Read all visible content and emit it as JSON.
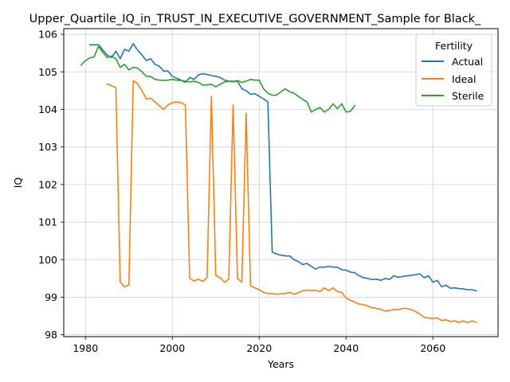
{
  "chart_data": {
    "type": "line",
    "title": "Upper_Quartile_IQ_in_TRUST_IN_EXECUTIVE_GOVERNMENT_Sample for Black_",
    "xlabel": "Years",
    "ylabel": "IQ",
    "xlim": [
      1975,
      2075
    ],
    "ylim": [
      97.95,
      106.15
    ],
    "x_ticks": [
      1980,
      2000,
      2020,
      2040,
      2060
    ],
    "y_ticks": [
      98,
      99,
      100,
      101,
      102,
      103,
      104,
      105,
      106
    ],
    "grid": true,
    "legend": {
      "title": "Fertility",
      "placement": "top-right"
    },
    "series": [
      {
        "name": "Actual",
        "color": "#1f77b4",
        "x": [
          1981,
          1982,
          1983,
          1984,
          1985,
          1986,
          1987,
          1988,
          1989,
          1990,
          1991,
          1992,
          1993,
          1994,
          1995,
          1996,
          1997,
          1998,
          1999,
          2000,
          2001,
          2002,
          2003,
          2004,
          2005,
          2006,
          2007,
          2008,
          2009,
          2010,
          2011,
          2012,
          2013,
          2014,
          2015,
          2016,
          2017,
          2018,
          2019,
          2020,
          2021,
          2022,
          2023,
          2024,
          2025,
          2026,
          2027,
          2028,
          2029,
          2030,
          2031,
          2032,
          2033,
          2034,
          2035,
          2036,
          2037,
          2038,
          2039,
          2040,
          2041,
          2042,
          2043,
          2044,
          2045,
          2046,
          2047,
          2048,
          2049,
          2050,
          2051,
          2052,
          2053,
          2054,
          2055,
          2056,
          2057,
          2058,
          2059,
          2060,
          2061,
          2062,
          2063,
          2064,
          2065,
          2066,
          2067,
          2068,
          2069,
          2070
        ],
        "values": [
          105.72,
          105.72,
          105.72,
          105.58,
          105.45,
          105.38,
          105.55,
          105.35,
          105.6,
          105.55,
          105.75,
          105.58,
          105.45,
          105.3,
          105.35,
          105.2,
          105.15,
          105.02,
          105.02,
          104.88,
          104.83,
          104.78,
          104.72,
          104.85,
          104.8,
          104.92,
          104.95,
          104.93,
          104.9,
          104.88,
          104.85,
          104.78,
          104.75,
          104.75,
          104.75,
          104.55,
          104.5,
          104.4,
          104.42,
          104.35,
          104.28,
          104.2,
          100.2,
          100.15,
          100.12,
          100.1,
          100.1,
          100.0,
          99.95,
          99.87,
          99.9,
          99.82,
          99.75,
          99.8,
          99.8,
          99.82,
          99.8,
          99.8,
          99.73,
          99.72,
          99.67,
          99.65,
          99.57,
          99.52,
          99.5,
          99.47,
          99.48,
          99.45,
          99.5,
          99.47,
          99.57,
          99.53,
          99.55,
          99.57,
          99.58,
          99.6,
          99.62,
          99.52,
          99.57,
          99.4,
          99.45,
          99.28,
          99.32,
          99.24,
          99.25,
          99.23,
          99.22,
          99.2,
          99.2,
          99.17
        ]
      },
      {
        "name": "Ideal",
        "color": "#ff7f0e",
        "x": [
          1985,
          1986,
          1987,
          1988,
          1989,
          1990,
          1991,
          1992,
          1993,
          1994,
          1995,
          1996,
          1997,
          1998,
          1999,
          2000,
          2001,
          2002,
          2003,
          2004,
          2005,
          2006,
          2007,
          2008,
          2009,
          2010,
          2011,
          2012,
          2013,
          2014,
          2015,
          2016,
          2017,
          2018,
          2019,
          2020,
          2021,
          2022,
          2023,
          2024,
          2025,
          2026,
          2027,
          2028,
          2029,
          2030,
          2031,
          2032,
          2033,
          2034,
          2035,
          2036,
          2037,
          2038,
          2039,
          2040,
          2041,
          2042,
          2043,
          2044,
          2045,
          2046,
          2047,
          2048,
          2049,
          2050,
          2051,
          2052,
          2053,
          2054,
          2055,
          2056,
          2057,
          2058,
          2059,
          2060,
          2061,
          2062,
          2063,
          2064,
          2065,
          2066,
          2067,
          2068,
          2069,
          2070
        ],
        "values": [
          104.68,
          104.63,
          104.58,
          99.4,
          99.28,
          99.33,
          104.77,
          104.68,
          104.5,
          104.28,
          104.3,
          104.2,
          104.1,
          104.0,
          104.12,
          104.18,
          104.2,
          104.18,
          104.12,
          99.5,
          99.43,
          99.48,
          99.42,
          99.52,
          104.35,
          99.58,
          99.52,
          99.4,
          99.48,
          104.12,
          99.5,
          99.4,
          103.9,
          99.3,
          99.25,
          99.2,
          99.13,
          99.1,
          99.09,
          99.08,
          99.09,
          99.1,
          99.13,
          99.08,
          99.12,
          99.17,
          99.19,
          99.18,
          99.18,
          99.15,
          99.25,
          99.18,
          99.25,
          99.15,
          99.13,
          98.98,
          98.92,
          98.87,
          98.82,
          98.8,
          98.77,
          98.72,
          98.7,
          98.68,
          98.63,
          98.65,
          98.67,
          98.67,
          98.7,
          98.7,
          98.67,
          98.62,
          98.55,
          98.46,
          98.45,
          98.43,
          98.45,
          98.38,
          98.4,
          98.35,
          98.37,
          98.33,
          98.37,
          98.32,
          98.37,
          98.33
        ]
      },
      {
        "name": "Sterile",
        "color": "#2ca02c",
        "x": [
          1979,
          1980,
          1981,
          1982,
          1983,
          1984,
          1985,
          1986,
          1987,
          1988,
          1989,
          1990,
          1991,
          1992,
          1993,
          1994,
          1995,
          1996,
          1997,
          1998,
          1999,
          2000,
          2001,
          2002,
          2003,
          2004,
          2005,
          2006,
          2007,
          2008,
          2009,
          2010,
          2011,
          2012,
          2013,
          2014,
          2015,
          2016,
          2017,
          2018,
          2019,
          2020,
          2021,
          2022,
          2023,
          2024,
          2025,
          2026,
          2027,
          2028,
          2029,
          2030,
          2031,
          2032,
          2033,
          2034,
          2035,
          2036,
          2037,
          2038,
          2039,
          2040,
          2041,
          2042
        ],
        "values": [
          105.18,
          105.3,
          105.37,
          105.4,
          105.68,
          105.52,
          105.38,
          105.42,
          105.35,
          105.12,
          105.2,
          105.05,
          105.12,
          105.1,
          105.0,
          104.88,
          104.88,
          104.8,
          104.78,
          104.77,
          104.78,
          104.8,
          104.78,
          104.77,
          104.75,
          104.73,
          104.75,
          104.72,
          104.65,
          104.65,
          104.67,
          104.6,
          104.67,
          104.73,
          104.75,
          104.73,
          104.77,
          104.72,
          104.75,
          104.8,
          104.78,
          104.78,
          104.55,
          104.43,
          104.38,
          104.38,
          104.47,
          104.55,
          104.47,
          104.43,
          104.35,
          104.27,
          104.2,
          103.93,
          104.0,
          104.05,
          103.93,
          104.0,
          104.15,
          104.02,
          104.15,
          103.93,
          103.95,
          104.1
        ]
      }
    ]
  }
}
